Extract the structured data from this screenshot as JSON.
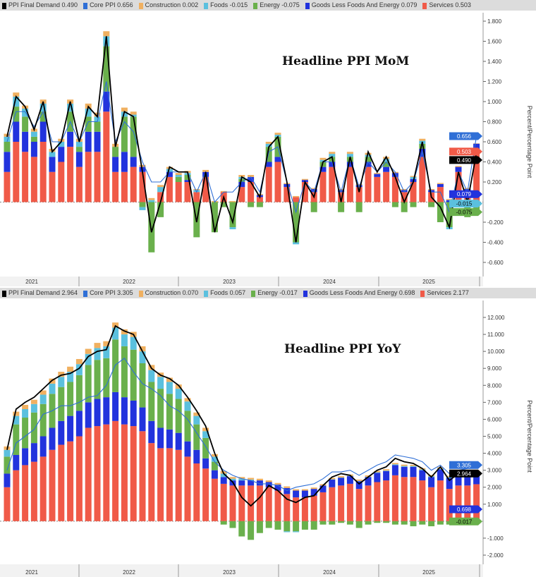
{
  "colors": {
    "headline": "#000000",
    "core": "#2f6fd6",
    "construction": "#f0b060",
    "foods": "#5bc0de",
    "energy": "#6ab04c",
    "goods": "#2233dd",
    "services": "#f05a48"
  },
  "chart_data": [
    {
      "type": "bar",
      "title": "Headline PPI MoM",
      "ylabel": "Percent/Percentage Point",
      "ylim": [
        -0.7,
        1.9
      ],
      "yticks": [
        "1.800",
        "1.600",
        "1.400",
        "1.200",
        "1.000",
        "0.800",
        "0.600",
        "0.400",
        "0.200",
        "-0.200",
        "-0.400",
        "-0.600"
      ],
      "ytick_values": [
        1.8,
        1.6,
        1.4,
        1.2,
        1.0,
        0.8,
        0.6,
        0.4,
        0.2,
        -0.2,
        -0.4,
        -0.6
      ],
      "x_years": [
        "2021",
        "2022",
        "2023",
        "2024",
        "2025"
      ],
      "grid": false,
      "stacked": true,
      "legend_placement": "top",
      "legend": [
        {
          "key": "headline",
          "label": "PPI Final Demand",
          "value": "0.490"
        },
        {
          "key": "core",
          "label": "Core PPI",
          "value": "0.656"
        },
        {
          "key": "construction",
          "label": "Construction",
          "value": "0.002"
        },
        {
          "key": "foods",
          "label": "Foods",
          "value": "-0.015"
        },
        {
          "key": "energy",
          "label": "Energy",
          "value": "-0.075"
        },
        {
          "key": "goods",
          "label": "Goods Less Foods And Energy",
          "value": "0.079"
        },
        {
          "key": "services",
          "label": "Services",
          "value": "0.503"
        }
      ],
      "flags": [
        {
          "key": "core",
          "value": "0.656"
        },
        {
          "key": "services",
          "value": "0.503"
        },
        {
          "key": "headline",
          "value": "0.490"
        },
        {
          "key": "goods",
          "value": "0.079"
        },
        {
          "key": "foods",
          "value": "-0.015"
        },
        {
          "key": "energy",
          "value": "-0.075"
        }
      ],
      "bars": {
        "services": [
          0.3,
          0.6,
          0.5,
          0.45,
          0.6,
          0.3,
          0.4,
          0.55,
          0.35,
          0.5,
          0.5,
          0.9,
          0.3,
          0.3,
          0.35,
          0.3,
          0.0,
          0.1,
          0.25,
          0.2,
          0.2,
          0.1,
          0.25,
          0.0,
          0.1,
          0.0,
          0.15,
          0.2,
          0.05,
          0.35,
          0.4,
          0.15,
          0.05,
          0.2,
          0.1,
          0.3,
          0.35,
          0.1,
          0.35,
          0.15,
          0.35,
          0.25,
          0.3,
          0.25,
          0.1,
          0.2,
          0.45,
          0.1,
          0.15,
          0.0,
          0.3,
          0.1,
          0.503
        ],
        "goods": [
          0.2,
          0.2,
          0.2,
          0.15,
          0.2,
          0.15,
          0.15,
          0.15,
          0.15,
          0.2,
          0.2,
          0.2,
          0.15,
          0.2,
          0.1,
          0.05,
          0.0,
          0.0,
          0.05,
          0.0,
          0.02,
          0.0,
          0.05,
          0.0,
          0.0,
          0.0,
          0.05,
          0.05,
          0.02,
          0.05,
          0.05,
          0.03,
          0.0,
          0.02,
          0.03,
          0.05,
          0.05,
          0.02,
          0.05,
          0.02,
          0.05,
          0.03,
          0.05,
          0.04,
          0.02,
          0.03,
          0.08,
          0.02,
          0.03,
          0.02,
          0.05,
          0.03,
          0.079
        ],
        "energy": [
          0.1,
          0.15,
          0.15,
          0.05,
          0.1,
          0.0,
          0.0,
          0.2,
          0.05,
          0.15,
          0.1,
          0.45,
          0.1,
          0.35,
          0.4,
          -0.05,
          -0.5,
          -0.15,
          0.0,
          0.05,
          0.05,
          -0.35,
          0.0,
          -0.3,
          -0.05,
          -0.25,
          0.03,
          -0.05,
          -0.05,
          0.15,
          0.2,
          0.0,
          -0.4,
          0.0,
          -0.1,
          0.05,
          0.05,
          -0.1,
          0.05,
          -0.1,
          0.05,
          0.0,
          0.05,
          -0.05,
          -0.1,
          -0.05,
          0.05,
          -0.05,
          -0.2,
          -0.25,
          -0.05,
          -0.15,
          -0.075
        ],
        "foods": [
          0.05,
          0.1,
          0.08,
          0.05,
          0.08,
          0.05,
          0.05,
          0.08,
          0.05,
          0.08,
          0.05,
          0.1,
          0.0,
          0.05,
          0.02,
          -0.03,
          0.02,
          0.05,
          0.03,
          0.02,
          0.02,
          0.02,
          0.0,
          0.0,
          0.0,
          -0.02,
          0.02,
          0.0,
          0.0,
          0.03,
          0.02,
          0.0,
          -0.02,
          0.0,
          0.0,
          0.02,
          0.03,
          0.0,
          0.03,
          0.0,
          0.02,
          0.0,
          0.03,
          0.0,
          0.0,
          0.02,
          0.03,
          0.0,
          0.0,
          -0.02,
          0.0,
          0.0,
          -0.015
        ],
        "construction": [
          0.03,
          0.04,
          0.03,
          0.03,
          0.04,
          0.03,
          0.03,
          0.04,
          0.03,
          0.05,
          0.04,
          0.05,
          0.03,
          0.04,
          0.03,
          0.02,
          0.02,
          0.02,
          0.02,
          0.02,
          0.02,
          0.01,
          0.02,
          0.01,
          0.01,
          0.01,
          0.02,
          0.02,
          0.01,
          0.02,
          0.02,
          0.01,
          0.01,
          0.01,
          0.01,
          0.02,
          0.02,
          0.01,
          0.02,
          0.01,
          0.02,
          0.01,
          0.02,
          0.01,
          0.01,
          0.01,
          0.02,
          0.01,
          0.01,
          0.01,
          0.01,
          0.01,
          0.002
        ]
      },
      "lines": {
        "headline": [
          0.65,
          1.05,
          0.95,
          0.72,
          1.0,
          0.5,
          0.6,
          1.0,
          0.6,
          0.95,
          0.85,
          1.65,
          0.55,
          0.9,
          0.85,
          0.3,
          -0.3,
          0.0,
          0.35,
          0.3,
          0.3,
          -0.2,
          0.3,
          -0.3,
          0.05,
          -0.2,
          0.25,
          0.2,
          0.05,
          0.55,
          0.65,
          0.2,
          -0.4,
          0.2,
          0.05,
          0.4,
          0.45,
          0.0,
          0.45,
          0.1,
          0.5,
          0.3,
          0.45,
          0.25,
          0.0,
          0.2,
          0.6,
          0.05,
          -0.05,
          -0.25,
          0.3,
          0.0,
          0.49
        ],
        "core": [
          0.6,
          0.9,
          0.9,
          0.75,
          0.9,
          0.6,
          0.6,
          0.8,
          0.6,
          0.8,
          0.8,
          1.2,
          0.6,
          0.8,
          0.7,
          0.4,
          0.2,
          0.2,
          0.3,
          0.3,
          0.3,
          0.1,
          0.3,
          0.0,
          0.1,
          0.1,
          0.2,
          0.25,
          0.1,
          0.5,
          0.55,
          0.2,
          -0.1,
          0.2,
          0.1,
          0.4,
          0.4,
          0.1,
          0.45,
          0.15,
          0.4,
          0.3,
          0.4,
          0.3,
          0.1,
          0.2,
          0.5,
          0.1,
          0.1,
          -0.1,
          0.3,
          0.1,
          0.656
        ]
      }
    },
    {
      "type": "bar",
      "title": "Headline PPI YoY",
      "ylabel": "Percent/Percentage Point",
      "ylim": [
        -2.5,
        12.6
      ],
      "yticks": [
        "12.000",
        "11.000",
        "10.000",
        "9.000",
        "8.000",
        "7.000",
        "6.000",
        "5.000",
        "4.000",
        "3.000",
        "2.000",
        "1.000",
        "-1.000",
        "-2.000"
      ],
      "ytick_values": [
        12,
        11,
        10,
        9,
        8,
        7,
        6,
        5,
        4,
        3,
        2,
        1,
        -1,
        -2
      ],
      "x_years": [
        "2021",
        "2022",
        "2023",
        "2024",
        "2025"
      ],
      "grid": false,
      "stacked": true,
      "legend_placement": "top",
      "legend": [
        {
          "key": "headline",
          "label": "PPI Final Demand",
          "value": "2.964"
        },
        {
          "key": "core",
          "label": "Core PPI",
          "value": "3.305"
        },
        {
          "key": "construction",
          "label": "Construction",
          "value": "0.070"
        },
        {
          "key": "foods",
          "label": "Foods",
          "value": "0.057"
        },
        {
          "key": "energy",
          "label": "Energy",
          "value": "-0.017"
        },
        {
          "key": "goods",
          "label": "Goods Less Foods And Energy",
          "value": "0.698"
        },
        {
          "key": "services",
          "label": "Services",
          "value": "2.177"
        }
      ],
      "flags": [
        {
          "key": "core",
          "value": "3.305"
        },
        {
          "key": "headline",
          "value": "2.964"
        },
        {
          "key": "goods",
          "value": "0.698"
        },
        {
          "key": "energy",
          "value": "-0.017"
        }
      ],
      "bars": {
        "services": [
          2.0,
          3.0,
          3.3,
          3.5,
          3.8,
          4.2,
          4.5,
          4.7,
          5.0,
          5.5,
          5.6,
          5.7,
          5.9,
          5.7,
          5.6,
          5.3,
          4.6,
          4.3,
          4.3,
          4.2,
          3.8,
          3.4,
          3.1,
          2.5,
          2.2,
          2.1,
          2.1,
          2.1,
          2.1,
          2.0,
          1.8,
          1.6,
          1.4,
          1.4,
          1.5,
          1.7,
          2.0,
          2.1,
          2.2,
          1.9,
          2.1,
          2.3,
          2.4,
          2.7,
          2.6,
          2.6,
          2.4,
          2.0,
          2.4,
          1.9,
          2.1,
          2.1,
          2.177
        ],
        "goods": [
          0.8,
          0.9,
          1.0,
          1.1,
          1.2,
          1.3,
          1.4,
          1.5,
          1.5,
          1.5,
          1.6,
          1.6,
          1.7,
          1.6,
          1.5,
          1.4,
          1.3,
          1.2,
          1.1,
          1.0,
          0.9,
          0.8,
          0.6,
          0.5,
          0.4,
          0.3,
          0.3,
          0.3,
          0.3,
          0.3,
          0.35,
          0.35,
          0.4,
          0.4,
          0.4,
          0.4,
          0.45,
          0.45,
          0.45,
          0.45,
          0.5,
          0.55,
          0.55,
          0.6,
          0.6,
          0.6,
          0.6,
          0.6,
          0.65,
          0.65,
          0.7,
          0.7,
          0.698
        ],
        "energy": [
          1.0,
          1.8,
          1.8,
          1.8,
          1.9,
          2.0,
          2.0,
          2.0,
          2.1,
          2.2,
          2.3,
          2.3,
          3.1,
          3.0,
          3.0,
          2.6,
          2.3,
          2.3,
          2.1,
          2.0,
          1.8,
          1.5,
          1.2,
          0.5,
          -0.2,
          -0.4,
          -0.9,
          -1.1,
          -0.7,
          -0.4,
          -0.5,
          -0.6,
          -0.6,
          -0.5,
          -0.5,
          -0.2,
          -0.2,
          -0.1,
          -0.2,
          -0.4,
          -0.2,
          -0.1,
          -0.1,
          -0.2,
          -0.2,
          -0.3,
          -0.2,
          -0.3,
          -0.2,
          -0.2,
          -0.1,
          -0.1,
          -0.017
        ],
        "foods": [
          0.4,
          0.5,
          0.5,
          0.5,
          0.55,
          0.6,
          0.6,
          0.6,
          0.65,
          0.65,
          0.7,
          0.7,
          0.7,
          0.7,
          0.75,
          0.7,
          0.7,
          0.7,
          0.7,
          0.6,
          0.55,
          0.5,
          0.4,
          0.3,
          0.2,
          0.1,
          0.1,
          0.05,
          0.0,
          0.0,
          0.0,
          -0.05,
          -0.05,
          0.0,
          0.0,
          0.0,
          0.02,
          0.02,
          0.02,
          0.02,
          0.02,
          0.03,
          0.03,
          0.05,
          0.05,
          0.05,
          0.05,
          0.05,
          0.05,
          0.05,
          0.05,
          0.05,
          0.057
        ],
        "construction": [
          0.2,
          0.25,
          0.25,
          0.25,
          0.25,
          0.3,
          0.3,
          0.3,
          0.3,
          0.3,
          0.3,
          0.3,
          0.3,
          0.3,
          0.3,
          0.3,
          0.3,
          0.25,
          0.25,
          0.25,
          0.2,
          0.2,
          0.2,
          0.15,
          0.15,
          0.1,
          0.1,
          0.1,
          0.1,
          0.1,
          0.1,
          0.1,
          0.08,
          0.08,
          0.08,
          0.08,
          0.08,
          0.08,
          0.08,
          0.08,
          0.08,
          0.08,
          0.08,
          0.08,
          0.08,
          0.07,
          0.07,
          0.07,
          0.07,
          0.07,
          0.07,
          0.07,
          0.07
        ]
      },
      "lines": {
        "headline": [
          4.2,
          6.6,
          7.0,
          7.3,
          7.8,
          8.3,
          8.6,
          8.7,
          9.0,
          9.7,
          10.0,
          10.1,
          11.5,
          11.2,
          11.0,
          10.0,
          9.0,
          8.6,
          8.4,
          8.0,
          7.3,
          6.5,
          5.6,
          4.0,
          2.8,
          2.3,
          1.4,
          0.9,
          1.4,
          2.1,
          1.8,
          1.3,
          1.1,
          1.4,
          1.5,
          2.1,
          2.6,
          2.8,
          2.7,
          2.2,
          2.6,
          3.0,
          3.2,
          3.7,
          3.5,
          3.4,
          3.1,
          2.6,
          3.2,
          2.4,
          2.8,
          2.7,
          2.964
        ],
        "core": [
          3.0,
          4.6,
          5.0,
          5.4,
          6.3,
          6.5,
          6.8,
          6.8,
          7.0,
          7.3,
          7.4,
          8.0,
          9.2,
          9.6,
          8.8,
          8.1,
          7.8,
          7.4,
          6.8,
          6.5,
          6.0,
          5.2,
          4.4,
          3.5,
          3.0,
          2.7,
          2.5,
          2.4,
          2.2,
          2.2,
          2.1,
          1.8,
          2.0,
          2.1,
          2.2,
          2.5,
          2.9,
          2.9,
          3.0,
          2.7,
          3.0,
          3.3,
          3.5,
          3.9,
          3.8,
          3.7,
          3.5,
          3.0,
          3.3,
          2.8,
          3.0,
          3.1,
          3.305
        ]
      }
    }
  ]
}
